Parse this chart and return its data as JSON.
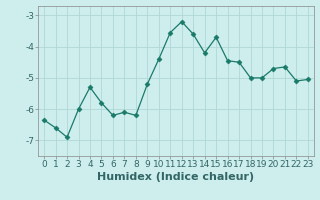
{
  "x": [
    0,
    1,
    2,
    3,
    4,
    5,
    6,
    7,
    8,
    9,
    10,
    11,
    12,
    13,
    14,
    15,
    16,
    17,
    18,
    19,
    20,
    21,
    22,
    23
  ],
  "y": [
    -6.35,
    -6.6,
    -6.9,
    -6.0,
    -5.3,
    -5.8,
    -6.2,
    -6.1,
    -6.2,
    -5.2,
    -4.4,
    -3.55,
    -3.2,
    -3.6,
    -4.2,
    -3.7,
    -4.45,
    -4.5,
    -5.0,
    -5.0,
    -4.7,
    -4.65,
    -5.1,
    -5.05
  ],
  "line_color": "#1a7a6a",
  "marker": "D",
  "marker_size": 2.5,
  "bg_color": "#ceeeed",
  "grid_color": "#b0d8d5",
  "xlabel": "Humidex (Indice chaleur)",
  "ylim": [
    -7.5,
    -2.7
  ],
  "xlim": [
    -0.5,
    23.5
  ],
  "yticks": [
    -7,
    -6,
    -5,
    -4,
    -3
  ],
  "xticks": [
    0,
    1,
    2,
    3,
    4,
    5,
    6,
    7,
    8,
    9,
    10,
    11,
    12,
    13,
    14,
    15,
    16,
    17,
    18,
    19,
    20,
    21,
    22,
    23
  ],
  "tick_fontsize": 6.5,
  "xlabel_fontsize": 8,
  "spine_color": "#888888",
  "tick_color": "#336666"
}
